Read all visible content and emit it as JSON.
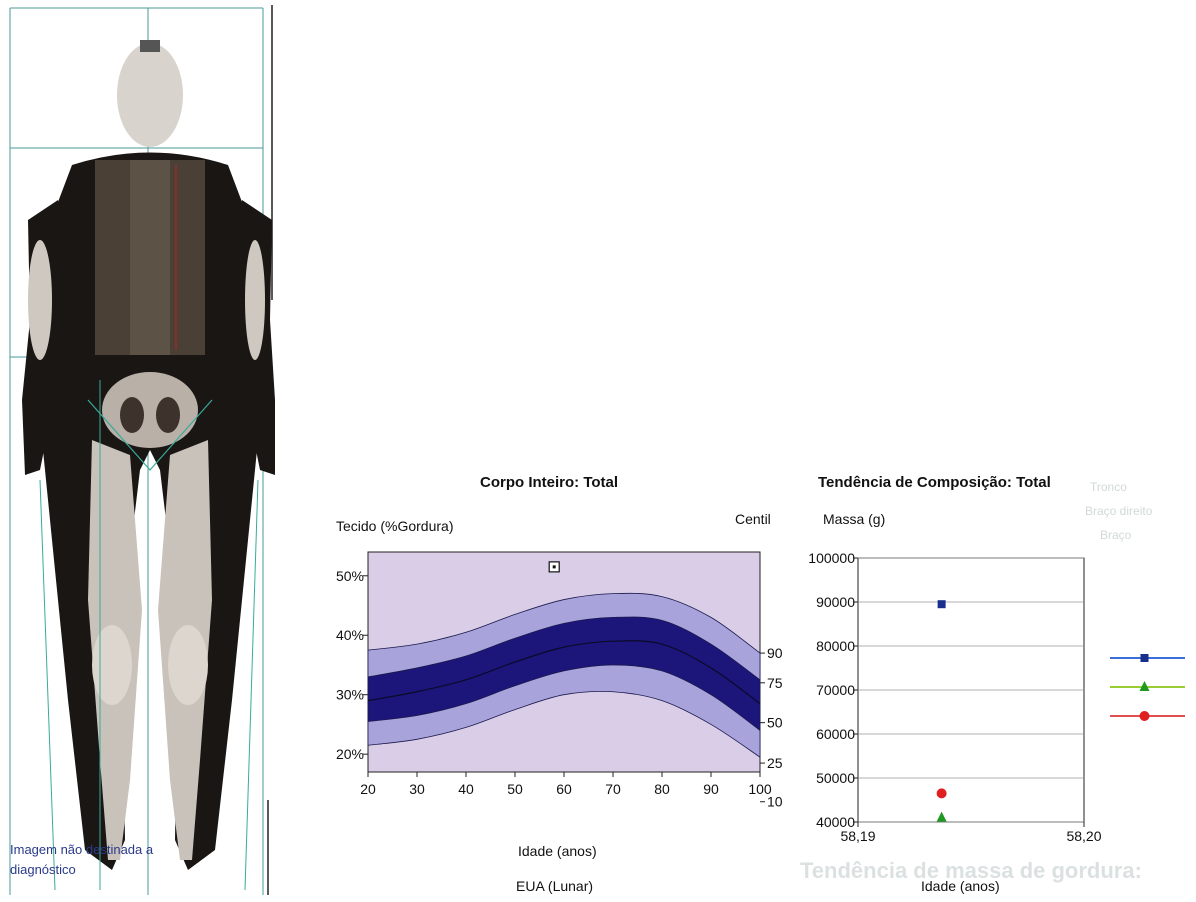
{
  "scan": {
    "caption_line1": "Imagem não destinada a",
    "caption_line2": "diagnóstico"
  },
  "left_chart": {
    "title": "Corpo Inteiro: Total",
    "ylabel": "Tecido (%Gordura)",
    "centile_label": "Centil",
    "xlabel": "Idade (anos)",
    "reference": "EUA (Lunar)"
  },
  "right_chart": {
    "title": "Tendência de Composição: Total",
    "ylabel": "Massa (g)",
    "xlabel": "Idade (anos)"
  },
  "bg_text": {
    "heading": "Tendência de massa de gordura:"
  },
  "colors": {
    "plot_bg": "#d9cde8",
    "outer_band": "#a9a3dc",
    "mid_band": "#6b64c8",
    "inner_band": "#1c167a",
    "blue": "#1a2e8c",
    "green": "#1f9a1f",
    "red": "#e02020"
  },
  "chart_data": [
    {
      "type": "area",
      "title": "Corpo Inteiro: Total",
      "xlabel": "Idade (anos)",
      "ylabel": "Tecido (%Gordura)",
      "xlim": [
        20,
        100
      ],
      "ylim": [
        17,
        54
      ],
      "x_ticks": [
        20,
        30,
        40,
        50,
        60,
        70,
        80,
        90,
        100
      ],
      "y_ticks": [
        20,
        30,
        40,
        50
      ],
      "y_tick_labels": [
        "20%",
        "30%",
        "40%",
        "50%"
      ],
      "centile_ticks": [
        "90",
        "75",
        "50",
        "25",
        "10"
      ],
      "centile_curves": {
        "x": [
          20,
          30,
          40,
          50,
          60,
          70,
          80,
          90,
          100
        ],
        "p10": [
          21.5,
          22.5,
          24.5,
          27.5,
          30.0,
          30.5,
          29.0,
          25.0,
          19.5
        ],
        "p25": [
          25.5,
          26.5,
          28.5,
          31.5,
          34.0,
          35.0,
          34.0,
          30.0,
          24.0
        ],
        "p50": [
          29.0,
          30.5,
          32.5,
          35.5,
          38.0,
          39.0,
          38.5,
          34.5,
          28.5
        ],
        "p75": [
          33.0,
          34.5,
          36.5,
          39.5,
          42.0,
          43.0,
          42.5,
          38.5,
          32.5
        ],
        "p90": [
          37.5,
          38.5,
          40.5,
          43.5,
          46.0,
          47.0,
          46.5,
          43.0,
          37.0
        ]
      },
      "patient_points": [
        {
          "x": 58,
          "y": 51.5
        }
      ]
    },
    {
      "type": "scatter",
      "title": "Tendência de Composição: Total",
      "xlabel": "Idade (anos)",
      "ylabel": "Massa (g)",
      "xlim": [
        58.19,
        58.2
      ],
      "ylim": [
        40000,
        100000
      ],
      "x_ticks": [
        58.19,
        58.2
      ],
      "x_tick_labels": [
        "58,19",
        "58,20"
      ],
      "y_ticks": [
        40000,
        50000,
        60000,
        70000,
        80000,
        90000,
        100000
      ],
      "series": [
        {
          "marker": "square",
          "color": "#1a2e8c",
          "points": [
            {
              "x": 58.1937,
              "y": 89500
            }
          ]
        },
        {
          "marker": "triangle",
          "color": "#1f9a1f",
          "points": [
            {
              "x": 58.1937,
              "y": 41000
            }
          ]
        },
        {
          "marker": "circle",
          "color": "#e02020",
          "points": [
            {
              "x": 58.1937,
              "y": 46500
            }
          ]
        }
      ],
      "legend_position": "right"
    }
  ]
}
